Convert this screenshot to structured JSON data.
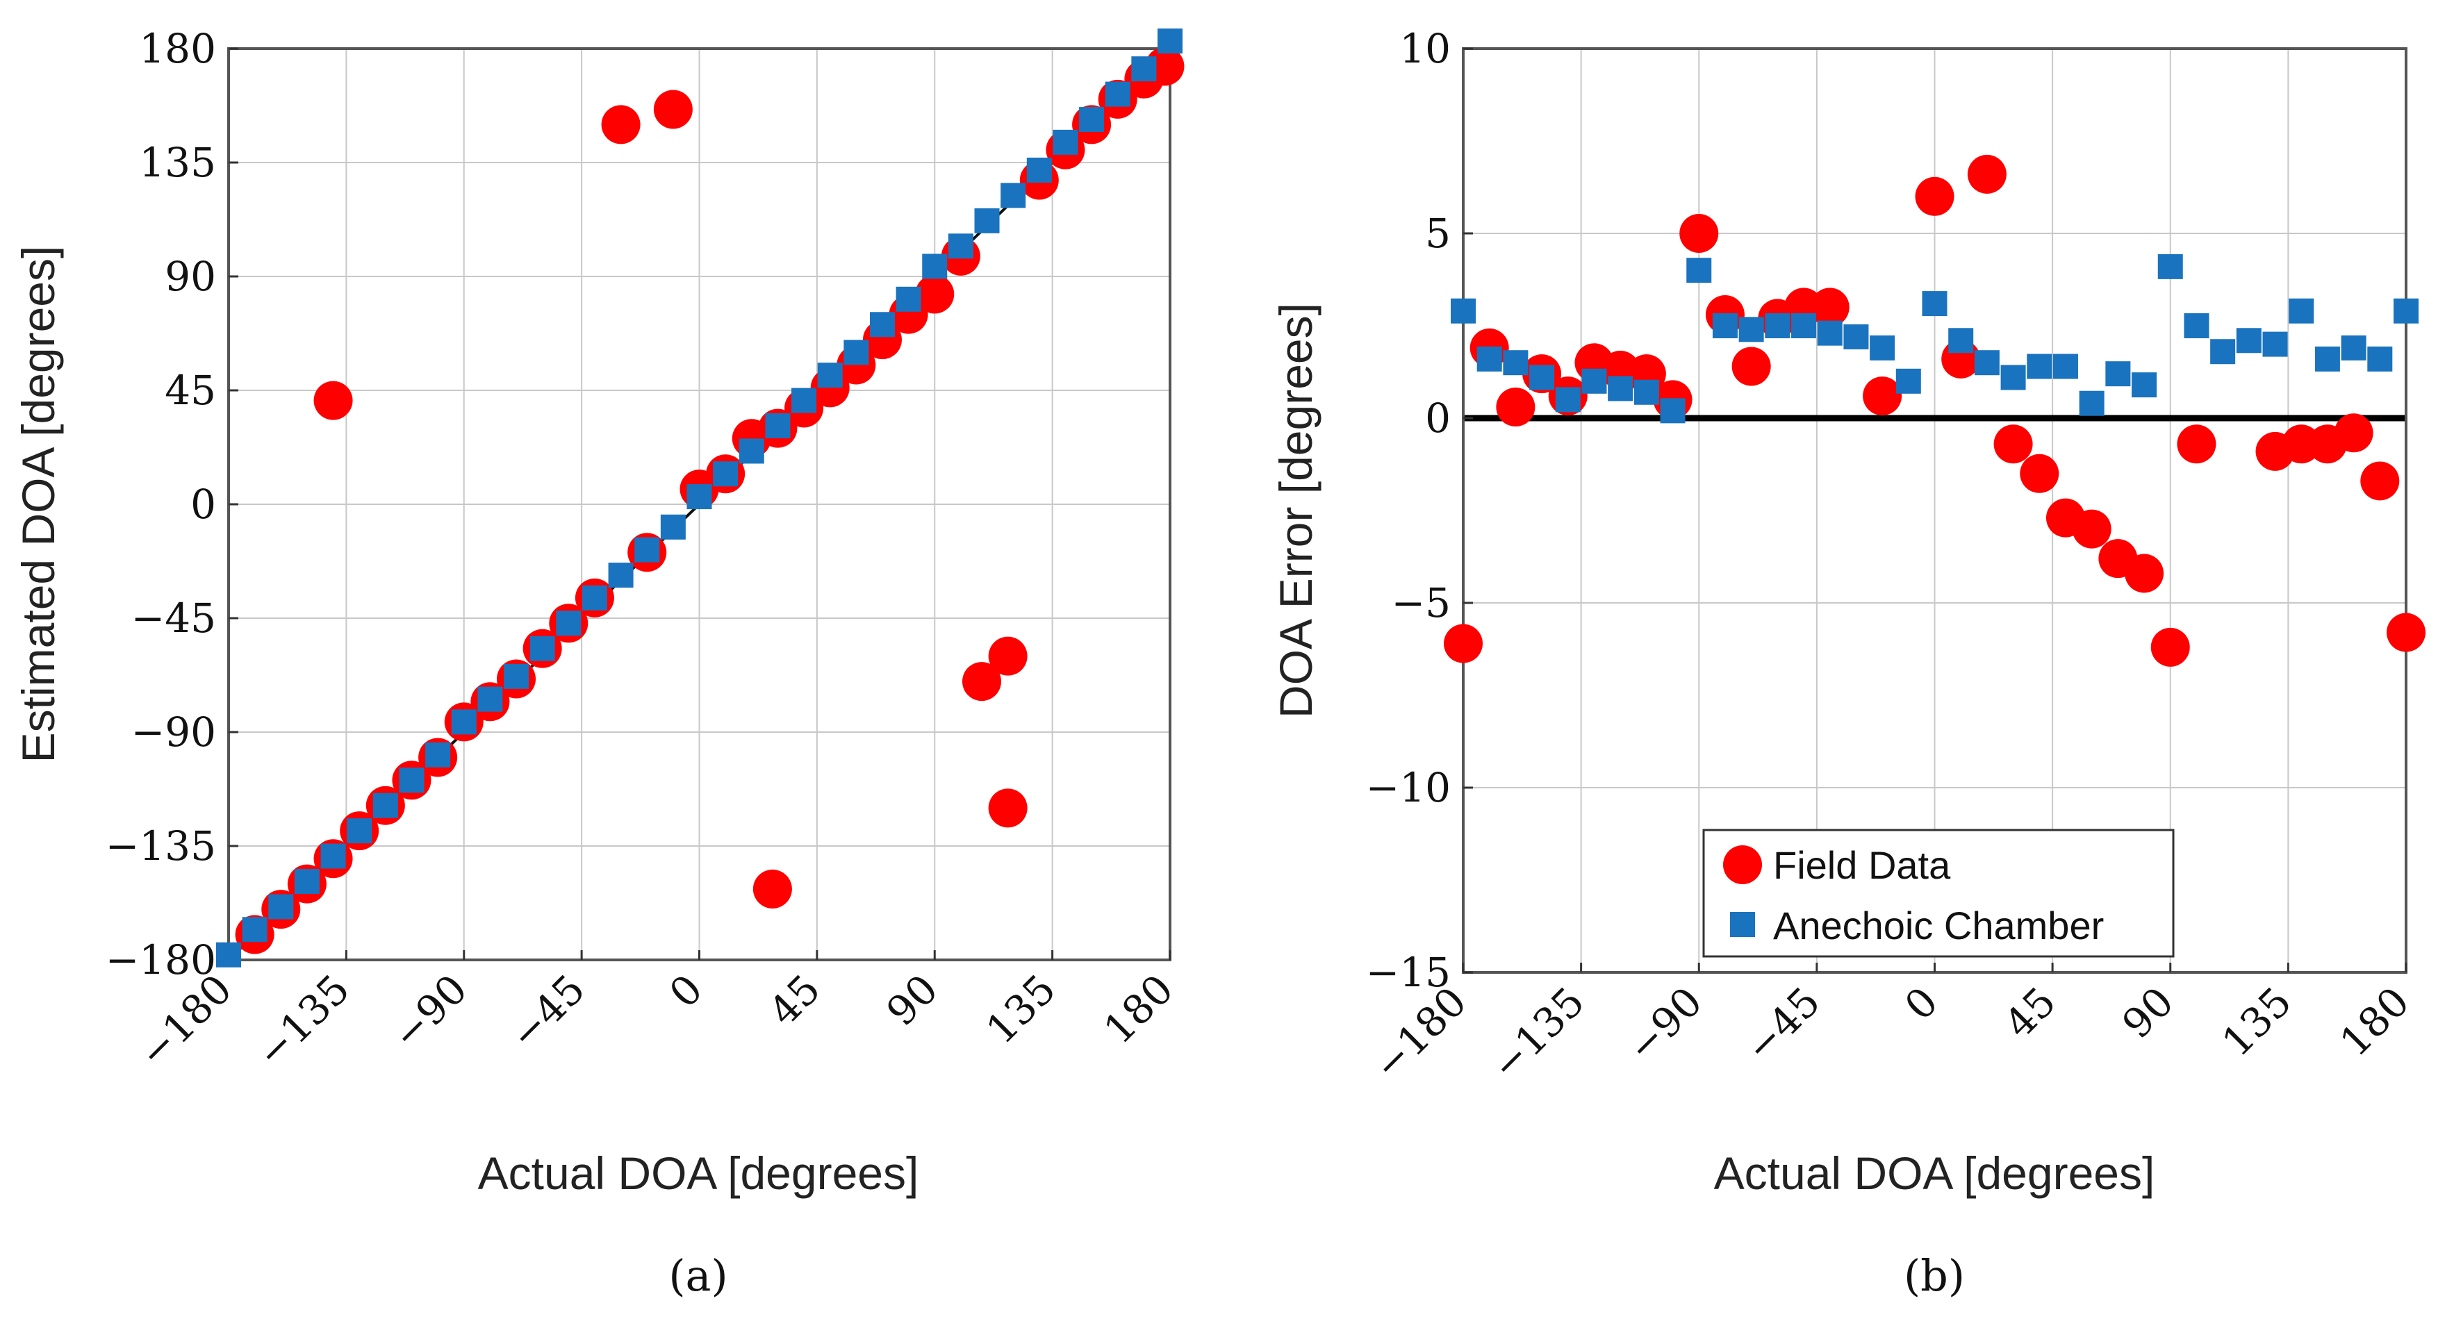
{
  "chart_data": [
    {
      "type": "scatter",
      "caption": "(a)",
      "xlabel": "Actual DOA [degrees]",
      "ylabel": "Estimated DOA [degrees]",
      "xlim": [
        -180,
        180
      ],
      "ylim": [
        -180,
        180
      ],
      "xticks": [
        -180,
        -135,
        -90,
        -45,
        0,
        45,
        90,
        135,
        180
      ],
      "yticks": [
        -180,
        -135,
        -90,
        -45,
        0,
        45,
        90,
        135,
        180
      ],
      "xtick_labels": [
        "−180",
        "−135",
        "−90",
        "−45",
        "0",
        "45",
        "90",
        "135",
        "180"
      ],
      "ytick_labels": [
        "−180",
        "−135",
        "−90",
        "−45",
        "0",
        "45",
        "90",
        "135",
        "180"
      ],
      "grid": true,
      "reference_line": true,
      "series": [
        {
          "name": "Field Data",
          "marker": "circle",
          "color": "#ff0000",
          "points": [
            [
              -170,
              -170
            ],
            [
              -160,
              -160
            ],
            [
              -150,
              -150
            ],
            [
              -140,
              41
            ],
            [
              -140,
              -140
            ],
            [
              -130,
              -129
            ],
            [
              -120,
              -119
            ],
            [
              -110,
              -109
            ],
            [
              -100,
              -100
            ],
            [
              -90,
              -86
            ],
            [
              -80,
              -78
            ],
            [
              -70,
              -69
            ],
            [
              -60,
              -57
            ],
            [
              -50,
              -47
            ],
            [
              -40,
              -37
            ],
            [
              -30,
              150
            ],
            [
              -20,
              -19
            ],
            [
              -10,
              156
            ],
            [
              0,
              6
            ],
            [
              10,
              12
            ],
            [
              20,
              26
            ],
            [
              28,
              -152
            ],
            [
              30,
              30
            ],
            [
              40,
              38
            ],
            [
              50,
              46
            ],
            [
              60,
              55
            ],
            [
              70,
              65
            ],
            [
              80,
              75
            ],
            [
              90,
              83
            ],
            [
              100,
              98
            ],
            [
              108,
              -70
            ],
            [
              118,
              -60
            ],
            [
              118,
              -120
            ],
            [
              130,
              128
            ],
            [
              140,
              140
            ],
            [
              150,
              150
            ],
            [
              160,
              160
            ],
            [
              170,
              168
            ],
            [
              178,
              173
            ]
          ]
        },
        {
          "name": "Anechoic Chamber",
          "marker": "square",
          "color": "#1a73be",
          "points": [
            [
              -180,
              -178
            ],
            [
              -170,
              -168
            ],
            [
              -160,
              -159
            ],
            [
              -150,
              -149
            ],
            [
              -140,
              -139
            ],
            [
              -130,
              -129
            ],
            [
              -120,
              -119
            ],
            [
              -110,
              -109
            ],
            [
              -100,
              -99
            ],
            [
              -90,
              -86
            ],
            [
              -80,
              -77
            ],
            [
              -70,
              -68
            ],
            [
              -60,
              -57
            ],
            [
              -50,
              -47
            ],
            [
              -40,
              -37
            ],
            [
              -30,
              -28
            ],
            [
              -20,
              -18
            ],
            [
              -10,
              -9
            ],
            [
              0,
              3
            ],
            [
              10,
              12
            ],
            [
              20,
              21
            ],
            [
              30,
              31
            ],
            [
              40,
              41
            ],
            [
              50,
              51
            ],
            [
              60,
              60
            ],
            [
              70,
              71
            ],
            [
              80,
              81
            ],
            [
              90,
              94
            ],
            [
              100,
              102
            ],
            [
              110,
              112
            ],
            [
              120,
              122
            ],
            [
              130,
              132
            ],
            [
              140,
              143
            ],
            [
              150,
              152
            ],
            [
              160,
              162
            ],
            [
              170,
              172
            ],
            [
              180,
              183
            ]
          ]
        }
      ]
    },
    {
      "type": "scatter",
      "caption": "(b)",
      "xlabel": "Actual DOA [degrees]",
      "ylabel": "DOA Error [degrees]",
      "xlim": [
        -180,
        180
      ],
      "ylim": [
        -15,
        10
      ],
      "xticks": [
        -180,
        -135,
        -90,
        -45,
        0,
        45,
        90,
        135,
        180
      ],
      "yticks": [
        -15,
        -10,
        -5,
        0,
        5,
        10
      ],
      "xtick_labels": [
        "−180",
        "−135",
        "−90",
        "−45",
        "0",
        "45",
        "90",
        "135",
        "180"
      ],
      "ytick_labels": [
        "−15",
        "−10",
        "−5",
        "0",
        "5",
        "10"
      ],
      "grid": true,
      "zero_line": true,
      "legend_position": "bottom-center",
      "series": [
        {
          "name": "Field Data",
          "marker": "circle",
          "color": "#ff0000",
          "points": [
            [
              -180,
              -6.1
            ],
            [
              -170,
              1.9
            ],
            [
              -160,
              0.3
            ],
            [
              -150,
              1.2
            ],
            [
              -140,
              0.6
            ],
            [
              -130,
              1.5
            ],
            [
              -120,
              1.3
            ],
            [
              -110,
              1.2
            ],
            [
              -100,
              0.5
            ],
            [
              -90,
              5.0
            ],
            [
              -80,
              2.8
            ],
            [
              -70,
              1.4
            ],
            [
              -60,
              2.7
            ],
            [
              -50,
              3.0
            ],
            [
              -40,
              3.0
            ],
            [
              -20,
              0.6
            ],
            [
              0,
              6.0
            ],
            [
              10,
              1.6
            ],
            [
              20,
              6.6
            ],
            [
              30,
              -0.7
            ],
            [
              40,
              -1.5
            ],
            [
              50,
              -2.7
            ],
            [
              60,
              -3.0
            ],
            [
              70,
              -3.8
            ],
            [
              80,
              -4.2
            ],
            [
              90,
              -6.2
            ],
            [
              100,
              -0.7
            ],
            [
              130,
              -0.9
            ],
            [
              140,
              -0.7
            ],
            [
              150,
              -0.7
            ],
            [
              160,
              -0.4
            ],
            [
              170,
              -1.7
            ],
            [
              180,
              -5.8
            ]
          ]
        },
        {
          "name": "Anechoic Chamber",
          "marker": "square",
          "color": "#1a73be",
          "points": [
            [
              -180,
              2.9
            ],
            [
              -170,
              1.6
            ],
            [
              -160,
              1.5
            ],
            [
              -150,
              1.1
            ],
            [
              -140,
              0.5
            ],
            [
              -130,
              1.0
            ],
            [
              -120,
              0.8
            ],
            [
              -110,
              0.7
            ],
            [
              -100,
              0.2
            ],
            [
              -90,
              4.0
            ],
            [
              -80,
              2.5
            ],
            [
              -70,
              2.4
            ],
            [
              -60,
              2.5
            ],
            [
              -50,
              2.5
            ],
            [
              -40,
              2.3
            ],
            [
              -30,
              2.2
            ],
            [
              -20,
              1.9
            ],
            [
              -10,
              1.0
            ],
            [
              0,
              3.1
            ],
            [
              10,
              2.1
            ],
            [
              20,
              1.5
            ],
            [
              30,
              1.1
            ],
            [
              40,
              1.4
            ],
            [
              50,
              1.4
            ],
            [
              60,
              0.4
            ],
            [
              70,
              1.2
            ],
            [
              80,
              0.9
            ],
            [
              90,
              4.1
            ],
            [
              100,
              2.5
            ],
            [
              110,
              1.8
            ],
            [
              120,
              2.1
            ],
            [
              130,
              2.0
            ],
            [
              140,
              2.9
            ],
            [
              150,
              1.6
            ],
            [
              160,
              1.9
            ],
            [
              170,
              1.6
            ],
            [
              180,
              2.9
            ]
          ]
        }
      ]
    }
  ]
}
